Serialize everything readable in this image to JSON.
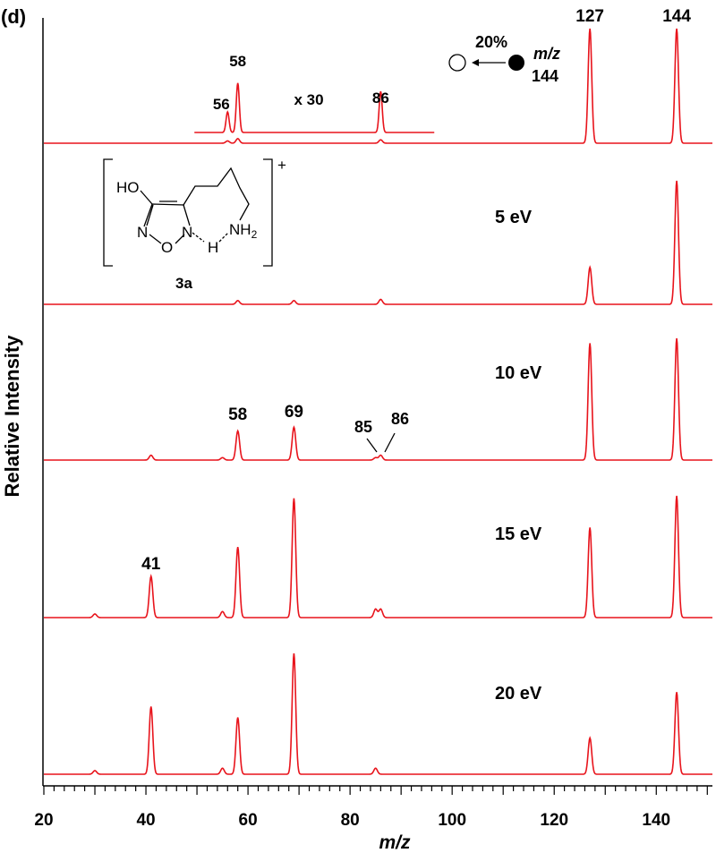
{
  "chart_data": {
    "type": "line",
    "panel_label": "(d)",
    "xlabel": "m/z",
    "ylabel": "Relative Intensity",
    "xlim": [
      20,
      151
    ],
    "x_ticks": [
      20,
      40,
      60,
      80,
      100,
      120,
      140
    ],
    "line_color": "#e8141c",
    "series": [
      {
        "collision_energy_label": "",
        "peaks": [
          {
            "mz": 56,
            "intensity": 0.02
          },
          {
            "mz": 58,
            "intensity": 0.04
          },
          {
            "mz": 86,
            "intensity": 0.03
          },
          {
            "mz": 127,
            "intensity": 1.0
          },
          {
            "mz": 144,
            "intensity": 1.0
          }
        ],
        "peak_labels": [
          "127",
          "144"
        ],
        "inset": {
          "scale_label": "x 30",
          "xrange": [
            56,
            86
          ],
          "peaks": [
            {
              "mz": 56,
              "intensity": 0.2
            },
            {
              "mz": 58,
              "intensity": 0.48
            },
            {
              "mz": 86,
              "intensity": 0.4
            }
          ],
          "peak_labels": [
            "56",
            "58",
            "86"
          ]
        },
        "precursor_note": {
          "percent": "20%",
          "mz_label": "m/z",
          "mz_value": "144"
        }
      },
      {
        "collision_energy_label": "5 eV",
        "peaks": [
          {
            "mz": 58,
            "intensity": 0.03
          },
          {
            "mz": 69,
            "intensity": 0.03
          },
          {
            "mz": 86,
            "intensity": 0.04
          },
          {
            "mz": 127,
            "intensity": 0.3
          },
          {
            "mz": 144,
            "intensity": 1.0
          }
        ],
        "peak_labels": [],
        "structure": {
          "compound_label": "3a",
          "charge": "+",
          "ho": "HO",
          "n1": "N",
          "n2": "N",
          "o": "O",
          "h": "H",
          "nh2": "NH",
          "sub2": "2"
        }
      },
      {
        "collision_energy_label": "10 eV",
        "peaks": [
          {
            "mz": 41,
            "intensity": 0.04
          },
          {
            "mz": 55,
            "intensity": 0.02
          },
          {
            "mz": 58,
            "intensity": 0.24
          },
          {
            "mz": 69,
            "intensity": 0.27
          },
          {
            "mz": 85,
            "intensity": 0.02
          },
          {
            "mz": 86,
            "intensity": 0.04
          },
          {
            "mz": 127,
            "intensity": 0.96
          },
          {
            "mz": 144,
            "intensity": 1.0
          }
        ],
        "peak_labels": [
          "58",
          "69",
          "85",
          "86"
        ]
      },
      {
        "collision_energy_label": "15 eV",
        "peaks": [
          {
            "mz": 30,
            "intensity": 0.03
          },
          {
            "mz": 41,
            "intensity": 0.34
          },
          {
            "mz": 55,
            "intensity": 0.05
          },
          {
            "mz": 58,
            "intensity": 0.58
          },
          {
            "mz": 69,
            "intensity": 0.98
          },
          {
            "mz": 85,
            "intensity": 0.07
          },
          {
            "mz": 86,
            "intensity": 0.07
          },
          {
            "mz": 127,
            "intensity": 0.74
          },
          {
            "mz": 144,
            "intensity": 1.0
          }
        ],
        "peak_labels": [
          "41"
        ]
      },
      {
        "collision_energy_label": "20 eV",
        "peaks": [
          {
            "mz": 30,
            "intensity": 0.03
          },
          {
            "mz": 41,
            "intensity": 0.56
          },
          {
            "mz": 55,
            "intensity": 0.05
          },
          {
            "mz": 58,
            "intensity": 0.47
          },
          {
            "mz": 69,
            "intensity": 1.0
          },
          {
            "mz": 85,
            "intensity": 0.05
          },
          {
            "mz": 127,
            "intensity": 0.3
          },
          {
            "mz": 144,
            "intensity": 0.68
          }
        ],
        "peak_labels": []
      }
    ]
  }
}
